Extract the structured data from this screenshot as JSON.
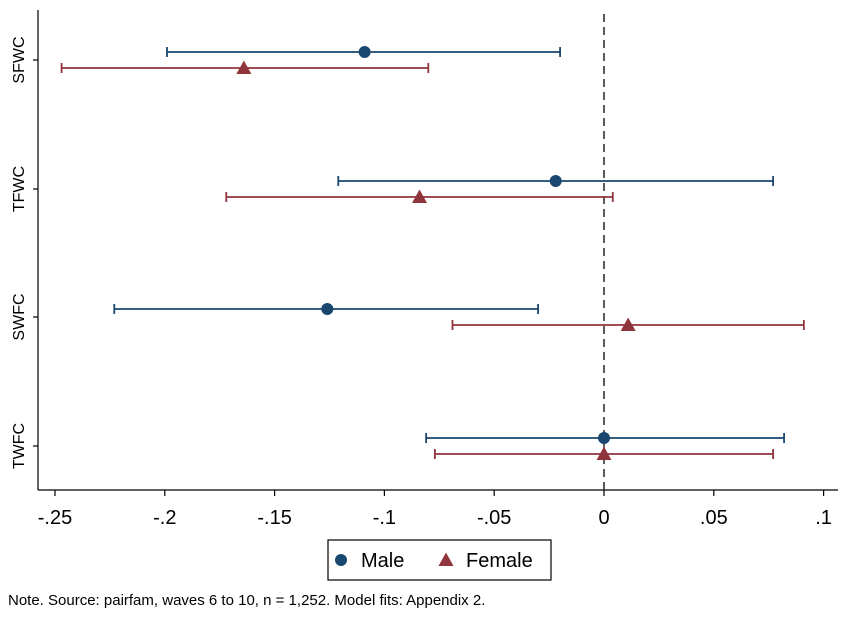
{
  "chart_data": {
    "type": "coefficient-plot",
    "orientation": "horizontal",
    "xlim": [
      -0.26,
      0.108
    ],
    "x_ticks": [
      {
        "value": -0.25,
        "label": "-.25"
      },
      {
        "value": -0.2,
        "label": "-.2"
      },
      {
        "value": -0.15,
        "label": "-.15"
      },
      {
        "value": -0.1,
        "label": "-.1"
      },
      {
        "value": -0.05,
        "label": "-.05"
      },
      {
        "value": 0,
        "label": "0"
      },
      {
        "value": 0.05,
        "label": ".05"
      },
      {
        "value": 0.1,
        "label": ".1"
      }
    ],
    "reference_line": 0,
    "grid": false,
    "legend_position": "bottom",
    "categories": [
      "SFWC",
      "TFWC",
      "SWFC",
      "TWFC"
    ],
    "series": [
      {
        "name": "Male",
        "marker": "circle",
        "color": "#1a476f",
        "points": [
          {
            "category": "SFWC",
            "estimate": -0.109,
            "ci_low": -0.199,
            "ci_high": -0.02
          },
          {
            "category": "TFWC",
            "estimate": -0.022,
            "ci_low": -0.121,
            "ci_high": 0.077
          },
          {
            "category": "SWFC",
            "estimate": -0.126,
            "ci_low": -0.223,
            "ci_high": -0.03
          },
          {
            "category": "TWFC",
            "estimate": 0.0,
            "ci_low": -0.081,
            "ci_high": 0.082
          }
        ]
      },
      {
        "name": "Female",
        "marker": "triangle",
        "color": "#90353b",
        "points": [
          {
            "category": "SFWC",
            "estimate": -0.164,
            "ci_low": -0.247,
            "ci_high": -0.08
          },
          {
            "category": "TFWC",
            "estimate": -0.084,
            "ci_low": -0.172,
            "ci_high": 0.004
          },
          {
            "category": "SWFC",
            "estimate": 0.011,
            "ci_low": -0.069,
            "ci_high": 0.091
          },
          {
            "category": "TWFC",
            "estimate": 0.0,
            "ci_low": -0.077,
            "ci_high": 0.077
          }
        ]
      }
    ]
  },
  "note": "Note. Source: pairfam, waves 6 to 10, n = 1,252. Model fits: Appendix 2."
}
